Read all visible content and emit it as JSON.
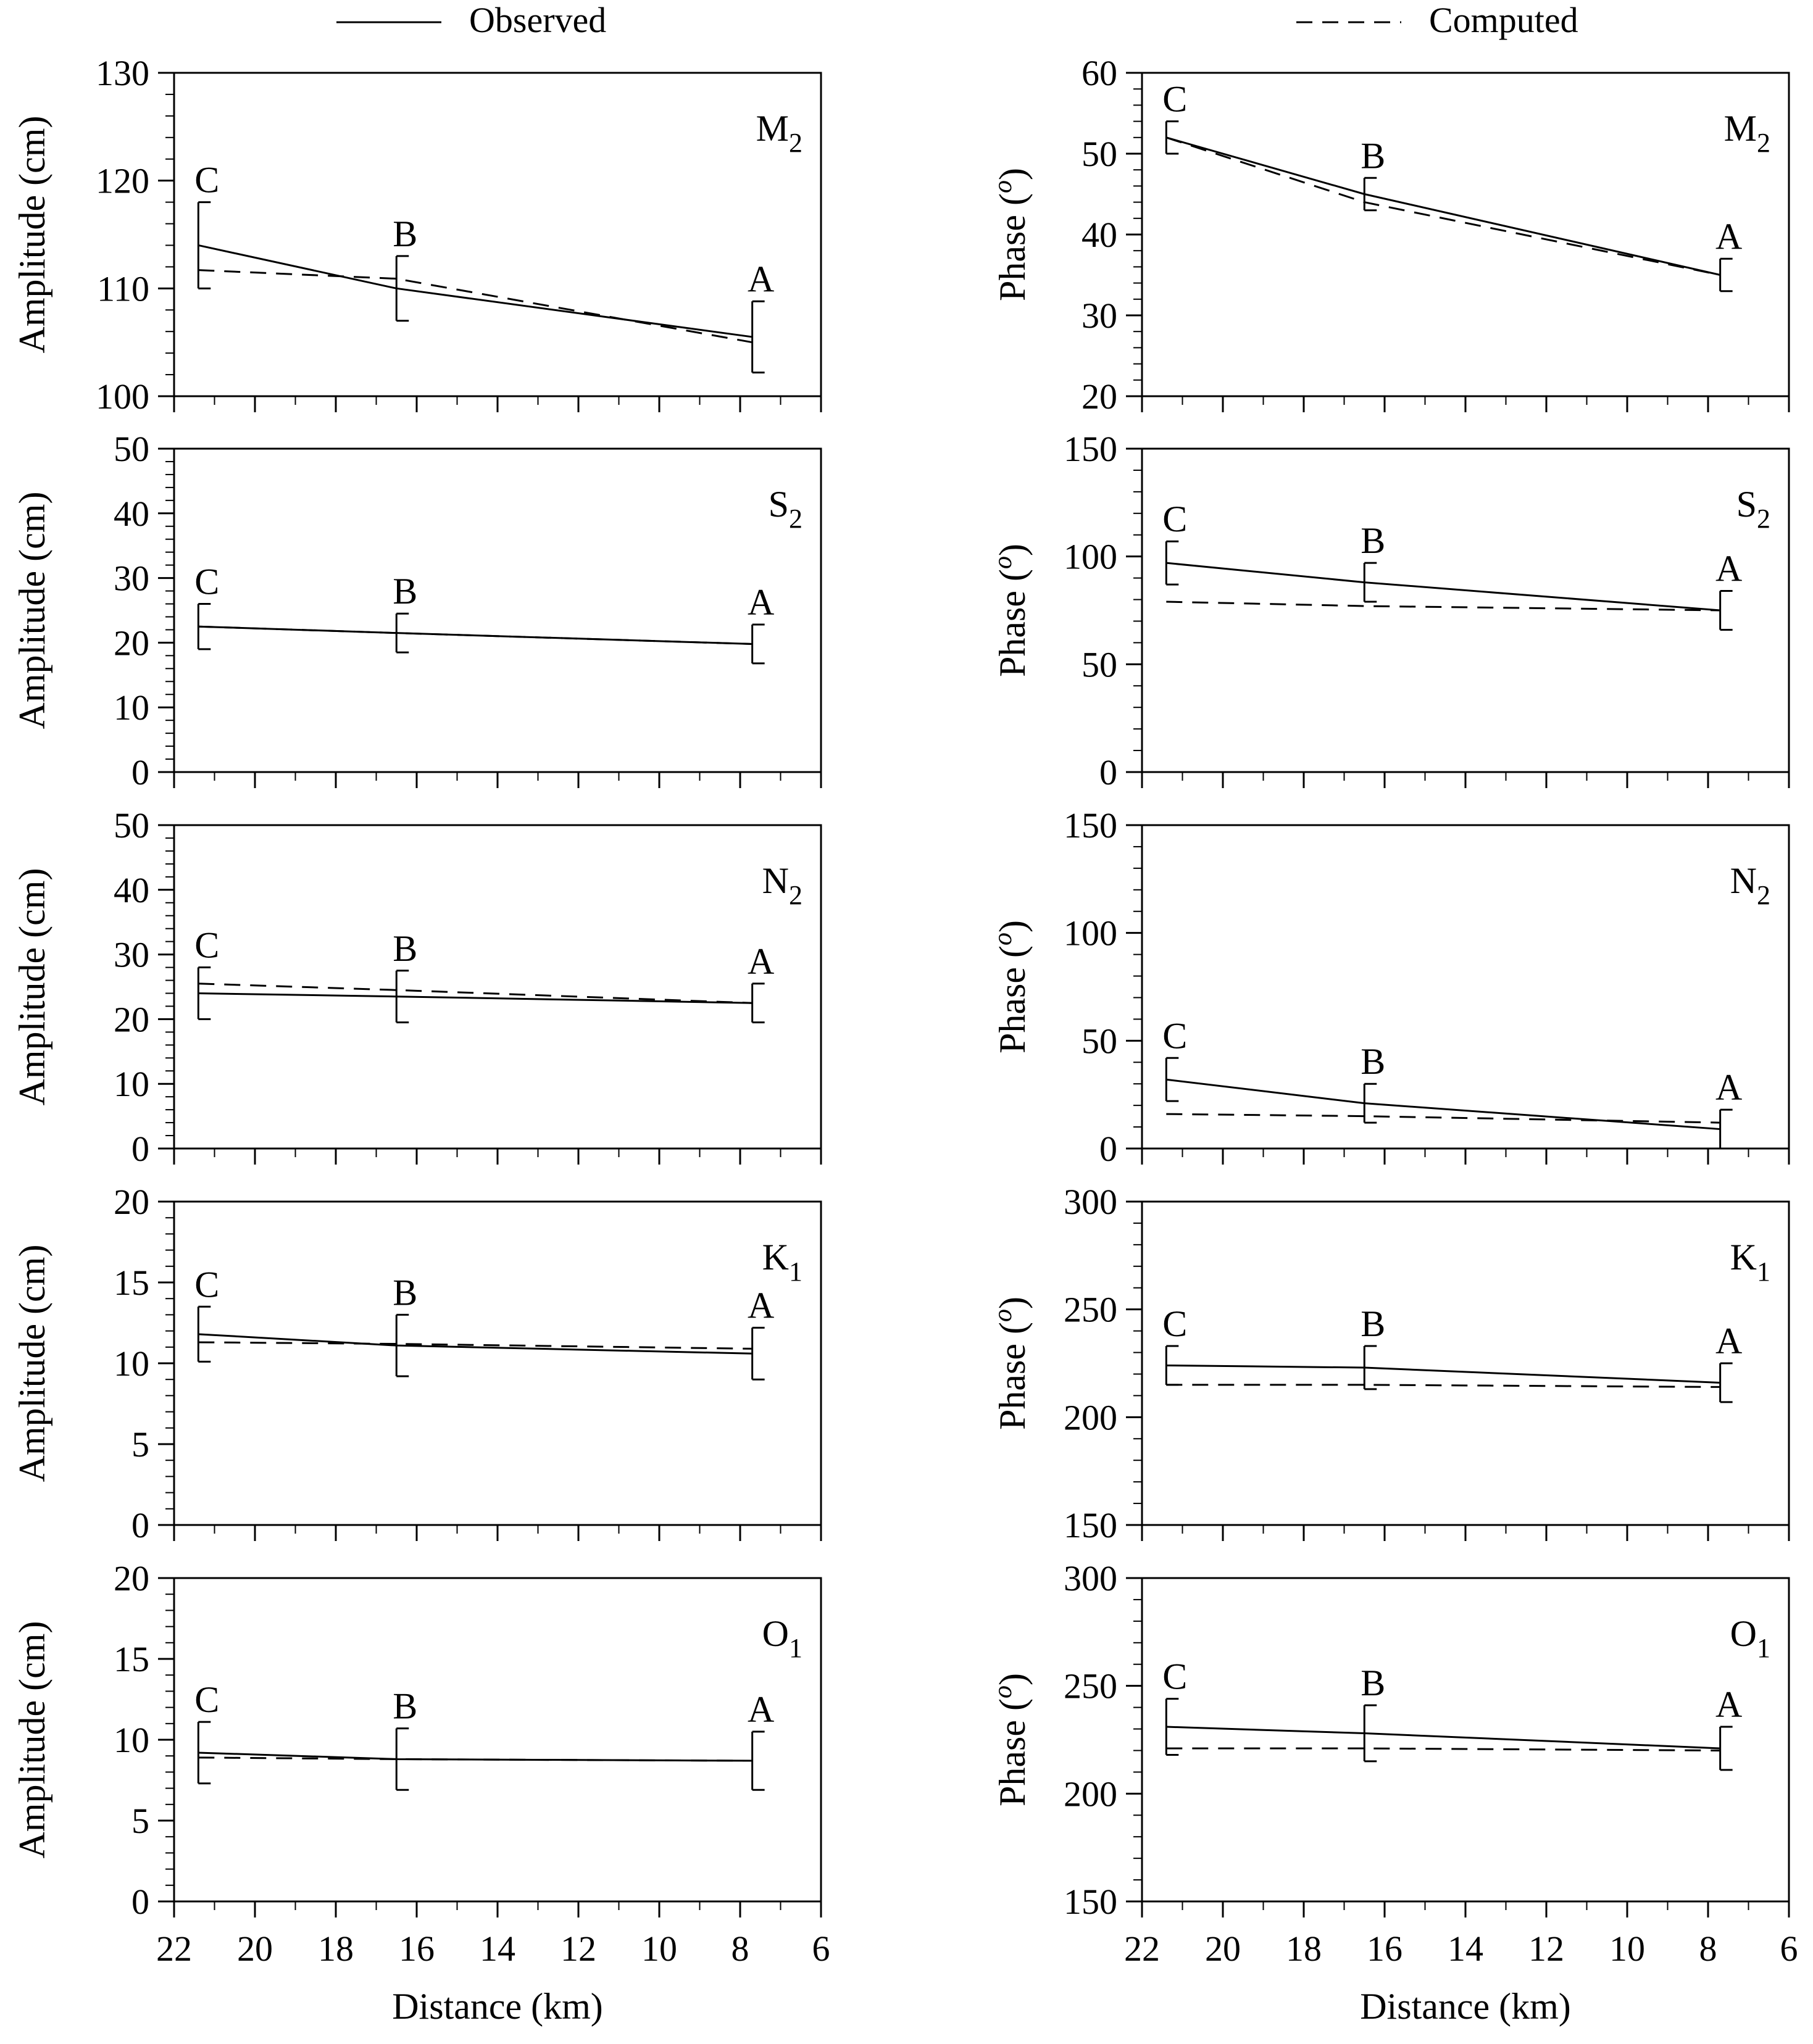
{
  "legend": {
    "observed": "Observed",
    "computed": "Computed"
  },
  "colors": {
    "ink": "#000000",
    "background": "#ffffff"
  },
  "chart_data": [
    {
      "id": "m2-amp",
      "type": "line",
      "constituent": "M",
      "subscript": "2",
      "title": "M2",
      "ylabel": "Amplitude (cm)",
      "xlabel": "",
      "xlim": [
        22,
        6
      ],
      "ylim": [
        100,
        130
      ],
      "yticks": [
        100,
        110,
        120,
        130
      ],
      "xticks": [
        22,
        20,
        18,
        16,
        14,
        12,
        10,
        8,
        6
      ],
      "stations": [
        "C",
        "B",
        "A"
      ],
      "x": [
        21.4,
        16.5,
        7.7
      ],
      "series": [
        {
          "name": "Observed",
          "values": [
            114,
            110,
            105.5
          ],
          "err": [
            4,
            3,
            3.3
          ]
        },
        {
          "name": "Computed",
          "values": [
            111.7,
            110.9,
            105
          ]
        }
      ]
    },
    {
      "id": "m2-phase",
      "type": "line",
      "constituent": "M",
      "subscript": "2",
      "title": "M2",
      "ylabel": "Phase (°)",
      "xlabel": "",
      "xlim": [
        22,
        6
      ],
      "ylim": [
        20,
        60
      ],
      "yticks": [
        20,
        30,
        40,
        50,
        60
      ],
      "xticks": [
        22,
        20,
        18,
        16,
        14,
        12,
        10,
        8,
        6
      ],
      "stations": [
        "C",
        "B",
        "A"
      ],
      "x": [
        21.4,
        16.5,
        7.7
      ],
      "series": [
        {
          "name": "Observed",
          "values": [
            52,
            45,
            35
          ],
          "err": [
            2,
            2,
            2
          ]
        },
        {
          "name": "Computed",
          "values": [
            52,
            44,
            35
          ]
        }
      ]
    },
    {
      "id": "s2-amp",
      "type": "line",
      "constituent": "S",
      "subscript": "2",
      "title": "S2",
      "ylabel": "Amplitude (cm)",
      "xlabel": "",
      "xlim": [
        22,
        6
      ],
      "ylim": [
        0,
        50
      ],
      "yticks": [
        0,
        10,
        20,
        30,
        40,
        50
      ],
      "xticks": [
        22,
        20,
        18,
        16,
        14,
        12,
        10,
        8,
        6
      ],
      "stations": [
        "C",
        "B",
        "A"
      ],
      "x": [
        21.4,
        16.5,
        7.7
      ],
      "series": [
        {
          "name": "Observed",
          "values": [
            22.5,
            21.5,
            19.8
          ],
          "err": [
            3.5,
            3,
            3
          ]
        },
        {
          "name": "Computed",
          "values": [
            22.5,
            21.5,
            19.8
          ]
        }
      ]
    },
    {
      "id": "s2-phase",
      "type": "line",
      "constituent": "S",
      "subscript": "2",
      "title": "S2",
      "ylabel": "Phase (°)",
      "xlabel": "",
      "xlim": [
        22,
        6
      ],
      "ylim": [
        0,
        150
      ],
      "yticks": [
        0,
        50,
        100,
        150
      ],
      "xticks": [
        22,
        20,
        18,
        16,
        14,
        12,
        10,
        8,
        6
      ],
      "stations": [
        "C",
        "B",
        "A"
      ],
      "x": [
        21.4,
        16.5,
        7.7
      ],
      "series": [
        {
          "name": "Observed",
          "values": [
            97,
            88,
            75
          ],
          "err": [
            10,
            9,
            9
          ]
        },
        {
          "name": "Computed",
          "values": [
            79,
            77,
            75
          ]
        }
      ]
    },
    {
      "id": "n2-amp",
      "type": "line",
      "constituent": "N",
      "subscript": "2",
      "title": "N2",
      "ylabel": "Amplitude (cm)",
      "xlabel": "",
      "xlim": [
        22,
        6
      ],
      "ylim": [
        0,
        50
      ],
      "yticks": [
        0,
        10,
        20,
        30,
        40,
        50
      ],
      "xticks": [
        22,
        20,
        18,
        16,
        14,
        12,
        10,
        8,
        6
      ],
      "stations": [
        "C",
        "B",
        "A"
      ],
      "x": [
        21.4,
        16.5,
        7.7
      ],
      "series": [
        {
          "name": "Observed",
          "values": [
            24,
            23.5,
            22.5
          ],
          "err": [
            4,
            4,
            3
          ]
        },
        {
          "name": "Computed",
          "values": [
            25.5,
            24.5,
            22.5
          ]
        }
      ]
    },
    {
      "id": "n2-phase",
      "type": "line",
      "constituent": "N",
      "subscript": "2",
      "title": "N2",
      "ylabel": "Phase (°)",
      "xlabel": "",
      "xlim": [
        22,
        6
      ],
      "ylim": [
        0,
        150
      ],
      "yticks": [
        0,
        50,
        100,
        150
      ],
      "xticks": [
        22,
        20,
        18,
        16,
        14,
        12,
        10,
        8,
        6
      ],
      "stations": [
        "C",
        "B",
        "A"
      ],
      "x": [
        21.4,
        16.5,
        7.7
      ],
      "series": [
        {
          "name": "Observed",
          "values": [
            32,
            21,
            9
          ],
          "err": [
            10,
            9,
            9
          ]
        },
        {
          "name": "Computed",
          "values": [
            16,
            15,
            12
          ]
        }
      ]
    },
    {
      "id": "k1-amp",
      "type": "line",
      "constituent": "K",
      "subscript": "1",
      "title": "K1",
      "ylabel": "Amplitude (cm)",
      "xlabel": "",
      "xlim": [
        22,
        6
      ],
      "ylim": [
        0,
        20
      ],
      "yticks": [
        0,
        5,
        10,
        15,
        20
      ],
      "xticks": [
        22,
        20,
        18,
        16,
        14,
        12,
        10,
        8,
        6
      ],
      "stations": [
        "C",
        "B",
        "A"
      ],
      "x": [
        21.4,
        16.5,
        7.7
      ],
      "series": [
        {
          "name": "Observed",
          "values": [
            11.8,
            11.1,
            10.6
          ],
          "err": [
            1.7,
            1.9,
            1.6
          ]
        },
        {
          "name": "Computed",
          "values": [
            11.3,
            11.2,
            10.9
          ]
        }
      ]
    },
    {
      "id": "k1-phase",
      "type": "line",
      "constituent": "K",
      "subscript": "1",
      "title": "K1",
      "ylabel": "Phase (°)",
      "xlabel": "",
      "xlim": [
        22,
        6
      ],
      "ylim": [
        150,
        300
      ],
      "yticks": [
        150,
        200,
        250,
        300
      ],
      "xticks": [
        22,
        20,
        18,
        16,
        14,
        12,
        10,
        8,
        6
      ],
      "stations": [
        "C",
        "B",
        "A"
      ],
      "x": [
        21.4,
        16.5,
        7.7
      ],
      "series": [
        {
          "name": "Observed",
          "values": [
            224,
            223,
            216
          ],
          "err": [
            9,
            10,
            9
          ]
        },
        {
          "name": "Computed",
          "values": [
            215,
            215,
            214
          ]
        }
      ]
    },
    {
      "id": "o1-amp",
      "type": "line",
      "constituent": "O",
      "subscript": "1",
      "title": "O1",
      "ylabel": "Amplitude (cm)",
      "xlabel": "Distance (km)",
      "xlim": [
        22,
        6
      ],
      "ylim": [
        0,
        20
      ],
      "yticks": [
        0,
        5,
        10,
        15,
        20
      ],
      "xticks": [
        22,
        20,
        18,
        16,
        14,
        12,
        10,
        8,
        6
      ],
      "stations": [
        "C",
        "B",
        "A"
      ],
      "x": [
        21.4,
        16.5,
        7.7
      ],
      "series": [
        {
          "name": "Observed",
          "values": [
            9.2,
            8.8,
            8.7
          ],
          "err": [
            1.9,
            1.9,
            1.8
          ]
        },
        {
          "name": "Computed",
          "values": [
            8.9,
            8.8,
            8.7
          ]
        }
      ]
    },
    {
      "id": "o1-phase",
      "type": "line",
      "constituent": "O",
      "subscript": "1",
      "title": "O1",
      "ylabel": "Phase (°)",
      "xlabel": "Distance (km)",
      "xlim": [
        22,
        6
      ],
      "ylim": [
        150,
        300
      ],
      "yticks": [
        150,
        200,
        250,
        300
      ],
      "xticks": [
        22,
        20,
        18,
        16,
        14,
        12,
        10,
        8,
        6
      ],
      "stations": [
        "C",
        "B",
        "A"
      ],
      "x": [
        21.4,
        16.5,
        7.7
      ],
      "series": [
        {
          "name": "Observed",
          "values": [
            231,
            228,
            221
          ],
          "err": [
            13,
            13,
            10
          ]
        },
        {
          "name": "Computed",
          "values": [
            221,
            221,
            220
          ]
        }
      ]
    }
  ]
}
